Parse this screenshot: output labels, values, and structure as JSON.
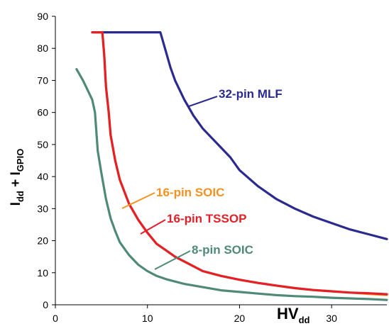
{
  "chart_data": {
    "type": "line",
    "title": "",
    "xlabel": {
      "main": "HV",
      "sub": "dd"
    },
    "ylabel": {
      "p1": "I",
      "s1": "dd",
      "p2": " + I",
      "s2": "GPIO"
    },
    "xlim": [
      0,
      36
    ],
    "ylim": [
      0,
      90
    ],
    "xticks": [
      0,
      10,
      20,
      30
    ],
    "yticks": [
      0,
      10,
      20,
      30,
      40,
      50,
      60,
      70,
      80,
      90
    ],
    "grid": false,
    "legend": "inline annotations",
    "series": [
      {
        "name": "32-pin MLF",
        "color": "#2b2b8f",
        "x": [
          5,
          11.4,
          11.9,
          12.5,
          13,
          14,
          15,
          16,
          17,
          18,
          19,
          20,
          22,
          24,
          26,
          28,
          30,
          32,
          34,
          36
        ],
        "y": [
          85,
          85,
          80,
          74,
          70,
          64,
          59,
          55,
          52,
          49,
          46,
          42,
          37,
          33,
          30,
          27.5,
          25.5,
          23.5,
          22,
          20.5
        ]
      },
      {
        "name": "16-pin SOIC",
        "color": "#f39221",
        "x": [
          4.2,
          5.1,
          5.3,
          5.5,
          5.8,
          6,
          6.5,
          7,
          8,
          9,
          10,
          11,
          12,
          13,
          14,
          15,
          16,
          18,
          20,
          22,
          24,
          26,
          28,
          30,
          32,
          34,
          36
        ],
        "y": [
          85,
          85,
          78,
          68,
          60,
          53,
          45,
          39,
          31.5,
          26.5,
          22.5,
          19,
          17,
          15,
          13.5,
          12,
          10.5,
          9,
          7.8,
          6.8,
          6,
          5.2,
          4.6,
          4.2,
          3.8,
          3.4,
          3.1
        ]
      },
      {
        "name": "16-pin TSSOP",
        "color": "#e32027",
        "x": [
          4,
          5.1,
          5.3,
          5.5,
          5.8,
          6,
          6.5,
          7,
          8,
          9,
          10,
          11,
          12,
          13,
          14,
          15,
          16,
          18,
          20,
          22,
          24,
          26,
          28,
          30,
          32,
          34,
          36
        ],
        "y": [
          85,
          85,
          78,
          68,
          60,
          53,
          45,
          39,
          31.5,
          26.5,
          22.5,
          19,
          17,
          15,
          13.5,
          12,
          10.5,
          9,
          7.8,
          6.8,
          6,
          5.2,
          4.6,
          4.2,
          3.8,
          3.6,
          3.3
        ]
      },
      {
        "name": "8-pin SOIC",
        "color": "#4f8a78",
        "x": [
          2.3,
          3,
          4,
          4.3,
          4.6,
          5,
          5.5,
          6,
          6.5,
          7,
          8,
          9,
          10,
          11,
          12,
          14,
          16,
          18,
          20,
          22,
          24,
          26,
          28,
          30,
          32,
          34,
          36
        ],
        "y": [
          73.5,
          70,
          64,
          60,
          48,
          41,
          33,
          27,
          23,
          19.5,
          15.5,
          12.5,
          10.5,
          9,
          8,
          6.5,
          5.5,
          4.5,
          4,
          3.5,
          3,
          2.7,
          2.5,
          2.2,
          2,
          1.8,
          1.5
        ]
      }
    ],
    "annotations": [
      {
        "text": "32-pin MLF",
        "color": "#2b2b8f"
      },
      {
        "text": "16-pin SOIC",
        "color": "#f39221"
      },
      {
        "text": "16-pin TSSOP",
        "color": "#e32027"
      },
      {
        "text": "8-pin SOIC",
        "color": "#4f8a78"
      }
    ]
  }
}
